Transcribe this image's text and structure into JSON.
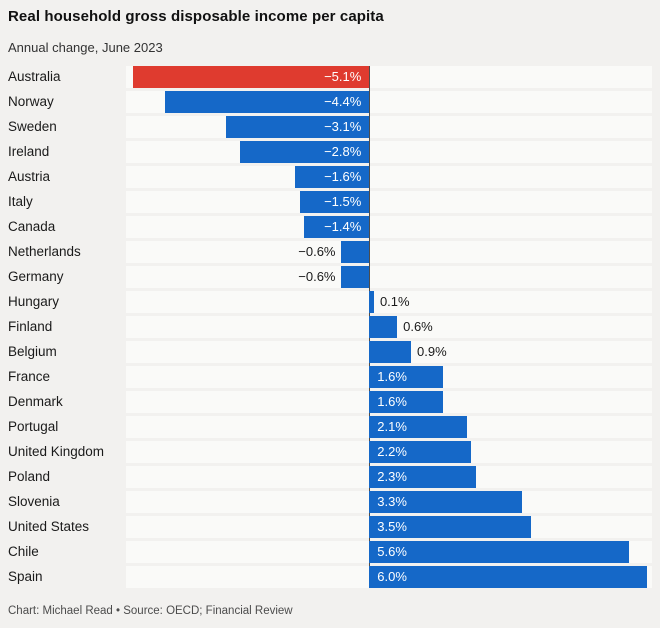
{
  "title": "Real household gross disposable income per capita",
  "subtitle": "Annual change, June 2023",
  "footer": "Chart: Michael Read • Source: OECD; Financial Review",
  "colors": {
    "bar_default": "#1568c8",
    "bar_highlight": "#df3b2f",
    "row_strip": "#fafaf8",
    "background": "#f2f1ef",
    "zero_axis": "#4d4d4d",
    "value_inside": "#ffffff",
    "value_outside": "#1a1a1a"
  },
  "chart_data": {
    "type": "bar",
    "orientation": "horizontal",
    "title": "Real household gross disposable income per capita",
    "subtitle": "Annual change, June 2023",
    "unit": "%",
    "xlim": [
      -5.25,
      6.1
    ],
    "grid": false,
    "legend": false,
    "categories": [
      "Australia",
      "Norway",
      "Sweden",
      "Ireland",
      "Austria",
      "Italy",
      "Canada",
      "Netherlands",
      "Germany",
      "Hungary",
      "Finland",
      "Belgium",
      "France",
      "Denmark",
      "Portugal",
      "United Kingdom",
      "Poland",
      "Slovenia",
      "United States",
      "Chile",
      "Spain"
    ],
    "values": [
      -5.1,
      -4.4,
      -3.1,
      -2.8,
      -1.6,
      -1.5,
      -1.4,
      -0.6,
      -0.6,
      0.1,
      0.6,
      0.9,
      1.6,
      1.6,
      2.1,
      2.2,
      2.3,
      3.3,
      3.5,
      5.6,
      6.0
    ],
    "rows": [
      {
        "country": "Australia",
        "value": -5.1,
        "label": "−5.1%",
        "color": "#df3b2f"
      },
      {
        "country": "Norway",
        "value": -4.4,
        "label": "−4.4%",
        "color": "#1568c8"
      },
      {
        "country": "Sweden",
        "value": -3.1,
        "label": "−3.1%",
        "color": "#1568c8"
      },
      {
        "country": "Ireland",
        "value": -2.8,
        "label": "−2.8%",
        "color": "#1568c8"
      },
      {
        "country": "Austria",
        "value": -1.6,
        "label": "−1.6%",
        "color": "#1568c8"
      },
      {
        "country": "Italy",
        "value": -1.5,
        "label": "−1.5%",
        "color": "#1568c8"
      },
      {
        "country": "Canada",
        "value": -1.4,
        "label": "−1.4%",
        "color": "#1568c8"
      },
      {
        "country": "Netherlands",
        "value": -0.6,
        "label": "−0.6%",
        "color": "#1568c8"
      },
      {
        "country": "Germany",
        "value": -0.6,
        "label": "−0.6%",
        "color": "#1568c8"
      },
      {
        "country": "Hungary",
        "value": 0.1,
        "label": "0.1%",
        "color": "#1568c8"
      },
      {
        "country": "Finland",
        "value": 0.6,
        "label": "0.6%",
        "color": "#1568c8"
      },
      {
        "country": "Belgium",
        "value": 0.9,
        "label": "0.9%",
        "color": "#1568c8"
      },
      {
        "country": "France",
        "value": 1.6,
        "label": "1.6%",
        "color": "#1568c8"
      },
      {
        "country": "Denmark",
        "value": 1.6,
        "label": "1.6%",
        "color": "#1568c8"
      },
      {
        "country": "Portugal",
        "value": 2.1,
        "label": "2.1%",
        "color": "#1568c8"
      },
      {
        "country": "United Kingdom",
        "value": 2.2,
        "label": "2.2%",
        "color": "#1568c8"
      },
      {
        "country": "Poland",
        "value": 2.3,
        "label": "2.3%",
        "color": "#1568c8"
      },
      {
        "country": "Slovenia",
        "value": 3.3,
        "label": "3.3%",
        "color": "#1568c8"
      },
      {
        "country": "United States",
        "value": 3.5,
        "label": "3.5%",
        "color": "#1568c8"
      },
      {
        "country": "Chile",
        "value": 5.6,
        "label": "5.6%",
        "color": "#1568c8"
      },
      {
        "country": "Spain",
        "value": 6.0,
        "label": "6.0%",
        "color": "#1568c8"
      }
    ]
  }
}
